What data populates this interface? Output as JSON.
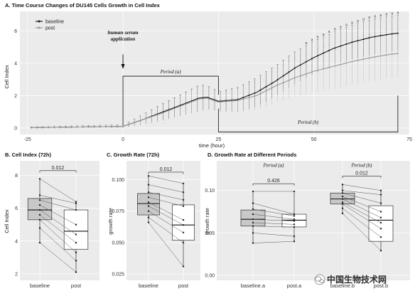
{
  "watermark": {
    "text": "中国生物技术网",
    "icon": "wechat-logo-icon"
  },
  "colors": {
    "baseline": "#1a1a1a",
    "post": "#9a9a9a",
    "panel_bg": "#ebebeb",
    "grid": "#ffffff",
    "box_baseline": "#c8c8c8",
    "box_post": "#ffffff"
  },
  "chart_data": [
    {
      "id": "A",
      "type": "line",
      "title": "A. Time Course Changes of DU145 Cells Growth in Cell Index",
      "xlabel": "time (hour)",
      "ylabel": "Cell Index",
      "xlim": [
        -27,
        75
      ],
      "ylim": [
        -0.4,
        7.2
      ],
      "xticks": [
        -25,
        0,
        25,
        50,
        75
      ],
      "yticks": [
        0,
        2,
        4,
        6
      ],
      "grid": true,
      "legend": "top-left",
      "annotations": {
        "arrow_text": [
          "human serum",
          "application"
        ],
        "period_a": "Period (a)",
        "period_b": "Period (b)",
        "sig_marker": "a"
      },
      "period_a_range": [
        0,
        25
      ],
      "period_b_range": [
        25,
        72
      ],
      "series": [
        {
          "name": "baseline",
          "key": "baseline",
          "points": [
            [
              -24,
              0.02
            ],
            [
              0,
              0.1
            ],
            [
              5,
              0.5
            ],
            [
              10,
              0.95
            ],
            [
              15,
              1.4
            ],
            [
              20,
              1.85
            ],
            [
              22,
              1.9
            ],
            [
              25,
              1.65
            ],
            [
              30,
              1.75
            ],
            [
              35,
              2.2
            ],
            [
              40,
              2.9
            ],
            [
              45,
              3.7
            ],
            [
              50,
              4.35
            ],
            [
              55,
              4.9
            ],
            [
              60,
              5.3
            ],
            [
              65,
              5.6
            ],
            [
              70,
              5.8
            ],
            [
              72,
              5.85
            ]
          ],
          "error_band": [
            [
              -24,
              0.05
            ],
            [
              0,
              0.1
            ],
            [
              10,
              0.5
            ],
            [
              20,
              0.8
            ],
            [
              25,
              0.6
            ],
            [
              35,
              0.9
            ],
            [
              45,
              1.0
            ],
            [
              55,
              1.0
            ],
            [
              65,
              1.1
            ],
            [
              72,
              1.1
            ]
          ],
          "sig_from_hour": 48
        },
        {
          "name": "post",
          "key": "post",
          "points": [
            [
              -24,
              0.02
            ],
            [
              0,
              0.1
            ],
            [
              5,
              0.5
            ],
            [
              10,
              0.9
            ],
            [
              15,
              1.35
            ],
            [
              20,
              1.8
            ],
            [
              22,
              1.85
            ],
            [
              25,
              1.6
            ],
            [
              30,
              1.7
            ],
            [
              35,
              2.0
            ],
            [
              40,
              2.6
            ],
            [
              45,
              3.1
            ],
            [
              50,
              3.5
            ],
            [
              55,
              3.8
            ],
            [
              60,
              4.1
            ],
            [
              65,
              4.35
            ],
            [
              70,
              4.55
            ],
            [
              72,
              4.6
            ]
          ],
          "error_band": [
            [
              -24,
              0.05
            ],
            [
              0,
              0.1
            ],
            [
              10,
              0.5
            ],
            [
              20,
              0.8
            ],
            [
              25,
              0.6
            ],
            [
              35,
              0.9
            ],
            [
              45,
              1.2
            ],
            [
              55,
              1.4
            ],
            [
              65,
              1.45
            ],
            [
              72,
              1.5
            ]
          ]
        }
      ]
    },
    {
      "id": "B",
      "type": "box",
      "title": "B. Cell Index (72h)",
      "xlabel": "",
      "ylabel": "Cell Index",
      "ylim": [
        1.6,
        8.9
      ],
      "yticks": [
        2,
        4,
        6,
        8
      ],
      "ytick_labels": [
        "2",
        "4",
        "6",
        "8"
      ],
      "categories": [
        "baseline",
        "post"
      ],
      "boxes": [
        {
          "name": "baseline",
          "min": 3.9,
          "q1": 5.3,
          "median": 5.9,
          "q3": 6.6,
          "max": 7.8
        },
        {
          "name": "post",
          "min": 2.1,
          "q1": 3.5,
          "median": 4.6,
          "q3": 5.9,
          "max": 6.4
        }
      ],
      "paired": [
        [
          7.8,
          6.4
        ],
        [
          6.8,
          6.3
        ],
        [
          6.5,
          5.9
        ],
        [
          6.2,
          5.0
        ],
        [
          5.9,
          4.4
        ],
        [
          5.6,
          3.9
        ],
        [
          5.3,
          3.3
        ],
        [
          4.8,
          2.8
        ],
        [
          3.9,
          2.1
        ]
      ],
      "pvalue": "0.012"
    },
    {
      "id": "C",
      "type": "box",
      "title": "C. Growth Rate (72h)",
      "xlabel": "",
      "ylabel": "growth rate",
      "ylim": [
        0.02,
        0.115
      ],
      "yticks": [
        0.025,
        0.05,
        0.075,
        0.1
      ],
      "ytick_labels": [
        "0.025",
        "0.050",
        "0.075",
        "0.100"
      ],
      "categories": [
        "baseline",
        "post"
      ],
      "boxes": [
        {
          "name": "baseline",
          "min": 0.066,
          "q1": 0.072,
          "median": 0.081,
          "q3": 0.089,
          "max": 0.103
        },
        {
          "name": "post",
          "min": 0.031,
          "q1": 0.052,
          "median": 0.064,
          "q3": 0.08,
          "max": 0.097
        }
      ],
      "paired": [
        [
          0.103,
          0.097
        ],
        [
          0.096,
          0.09
        ],
        [
          0.09,
          0.084
        ],
        [
          0.086,
          0.079
        ],
        [
          0.082,
          0.068
        ],
        [
          0.079,
          0.064
        ],
        [
          0.075,
          0.058
        ],
        [
          0.07,
          0.05
        ],
        [
          0.066,
          0.031
        ]
      ],
      "pvalue": "0.012"
    },
    {
      "id": "D",
      "type": "box",
      "title": "D. Growth Rate at Different Periods",
      "xlabel": "",
      "ylabel": "growth rate",
      "ylim": [
        -0.006,
        0.135
      ],
      "yticks": [
        0,
        0.05,
        0.1
      ],
      "ytick_labels": [
        "0.00",
        "0.05",
        "0.10"
      ],
      "categories": [
        "baseline.a",
        "post.a",
        "baseline.b",
        "post.b"
      ],
      "boxes": [
        {
          "name": "baseline.a",
          "min": 0.038,
          "q1": 0.058,
          "median": 0.066,
          "q3": 0.077,
          "max": 0.099
        },
        {
          "name": "post.a",
          "min": 0.04,
          "q1": 0.057,
          "median": 0.065,
          "q3": 0.072,
          "max": 0.099
        },
        {
          "name": "baseline.b",
          "min": 0.073,
          "q1": 0.084,
          "median": 0.09,
          "q3": 0.097,
          "max": 0.107
        },
        {
          "name": "post.b",
          "min": 0.029,
          "q1": 0.04,
          "median": 0.065,
          "q3": 0.082,
          "max": 0.1
        }
      ],
      "paired_a": [
        [
          0.099,
          0.099
        ],
        [
          0.085,
          0.072
        ],
        [
          0.078,
          0.07
        ],
        [
          0.072,
          0.066
        ],
        [
          0.066,
          0.064
        ],
        [
          0.062,
          0.06
        ],
        [
          0.058,
          0.057
        ],
        [
          0.05,
          0.046
        ],
        [
          0.038,
          0.04
        ]
      ],
      "paired_b": [
        [
          0.107,
          0.1
        ],
        [
          0.1,
          0.095
        ],
        [
          0.097,
          0.085
        ],
        [
          0.093,
          0.075
        ],
        [
          0.09,
          0.068
        ],
        [
          0.086,
          0.062
        ],
        [
          0.084,
          0.055
        ],
        [
          0.079,
          0.045
        ],
        [
          0.073,
          0.029
        ]
      ],
      "pvalue_a": "0.426",
      "pvalue_b": "0.012",
      "period_a": "Period (a)",
      "period_b": "Period (b)"
    }
  ]
}
